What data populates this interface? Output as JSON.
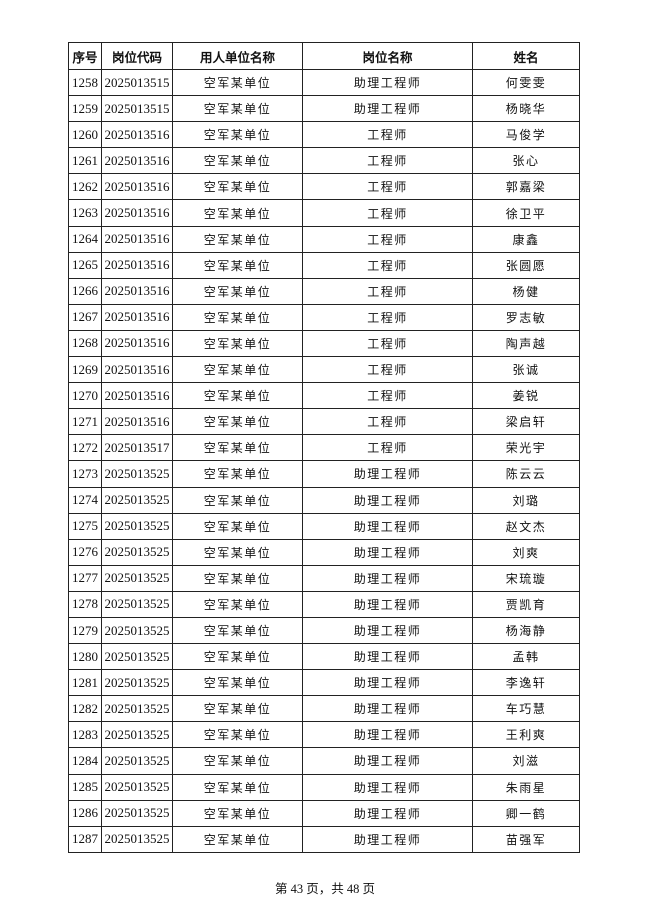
{
  "table": {
    "headers": [
      "序号",
      "岗位代码",
      "用人单位名称",
      "岗位名称",
      "姓名"
    ],
    "rows": [
      [
        "1258",
        "2025013515",
        "空军某单位",
        "助理工程师",
        "何雯雯"
      ],
      [
        "1259",
        "2025013515",
        "空军某单位",
        "助理工程师",
        "杨晓华"
      ],
      [
        "1260",
        "2025013516",
        "空军某单位",
        "工程师",
        "马俊学"
      ],
      [
        "1261",
        "2025013516",
        "空军某单位",
        "工程师",
        "张心"
      ],
      [
        "1262",
        "2025013516",
        "空军某单位",
        "工程师",
        "郭嘉梁"
      ],
      [
        "1263",
        "2025013516",
        "空军某单位",
        "工程师",
        "徐卫平"
      ],
      [
        "1264",
        "2025013516",
        "空军某单位",
        "工程师",
        "康鑫"
      ],
      [
        "1265",
        "2025013516",
        "空军某单位",
        "工程师",
        "张圆愿"
      ],
      [
        "1266",
        "2025013516",
        "空军某单位",
        "工程师",
        "杨健"
      ],
      [
        "1267",
        "2025013516",
        "空军某单位",
        "工程师",
        "罗志敏"
      ],
      [
        "1268",
        "2025013516",
        "空军某单位",
        "工程师",
        "陶声越"
      ],
      [
        "1269",
        "2025013516",
        "空军某单位",
        "工程师",
        "张诚"
      ],
      [
        "1270",
        "2025013516",
        "空军某单位",
        "工程师",
        "姜锐"
      ],
      [
        "1271",
        "2025013516",
        "空军某单位",
        "工程师",
        "梁启轩"
      ],
      [
        "1272",
        "2025013517",
        "空军某单位",
        "工程师",
        "荣光宇"
      ],
      [
        "1273",
        "2025013525",
        "空军某单位",
        "助理工程师",
        "陈云云"
      ],
      [
        "1274",
        "2025013525",
        "空军某单位",
        "助理工程师",
        "刘璐"
      ],
      [
        "1275",
        "2025013525",
        "空军某单位",
        "助理工程师",
        "赵文杰"
      ],
      [
        "1276",
        "2025013525",
        "空军某单位",
        "助理工程师",
        "刘爽"
      ],
      [
        "1277",
        "2025013525",
        "空军某单位",
        "助理工程师",
        "宋琉璇"
      ],
      [
        "1278",
        "2025013525",
        "空军某单位",
        "助理工程师",
        "贾凯育"
      ],
      [
        "1279",
        "2025013525",
        "空军某单位",
        "助理工程师",
        "杨海静"
      ],
      [
        "1280",
        "2025013525",
        "空军某单位",
        "助理工程师",
        "孟韩"
      ],
      [
        "1281",
        "2025013525",
        "空军某单位",
        "助理工程师",
        "李逸轩"
      ],
      [
        "1282",
        "2025013525",
        "空军某单位",
        "助理工程师",
        "车巧慧"
      ],
      [
        "1283",
        "2025013525",
        "空军某单位",
        "助理工程师",
        "王利爽"
      ],
      [
        "1284",
        "2025013525",
        "空军某单位",
        "助理工程师",
        "刘滋"
      ],
      [
        "1285",
        "2025013525",
        "空军某单位",
        "助理工程师",
        "朱雨星"
      ],
      [
        "1286",
        "2025013525",
        "空军某单位",
        "助理工程师",
        "卿一鹤"
      ],
      [
        "1287",
        "2025013525",
        "空军某单位",
        "助理工程师",
        "苗强军"
      ]
    ]
  },
  "footer": {
    "page_text": "第 43 页，共 48 页"
  }
}
